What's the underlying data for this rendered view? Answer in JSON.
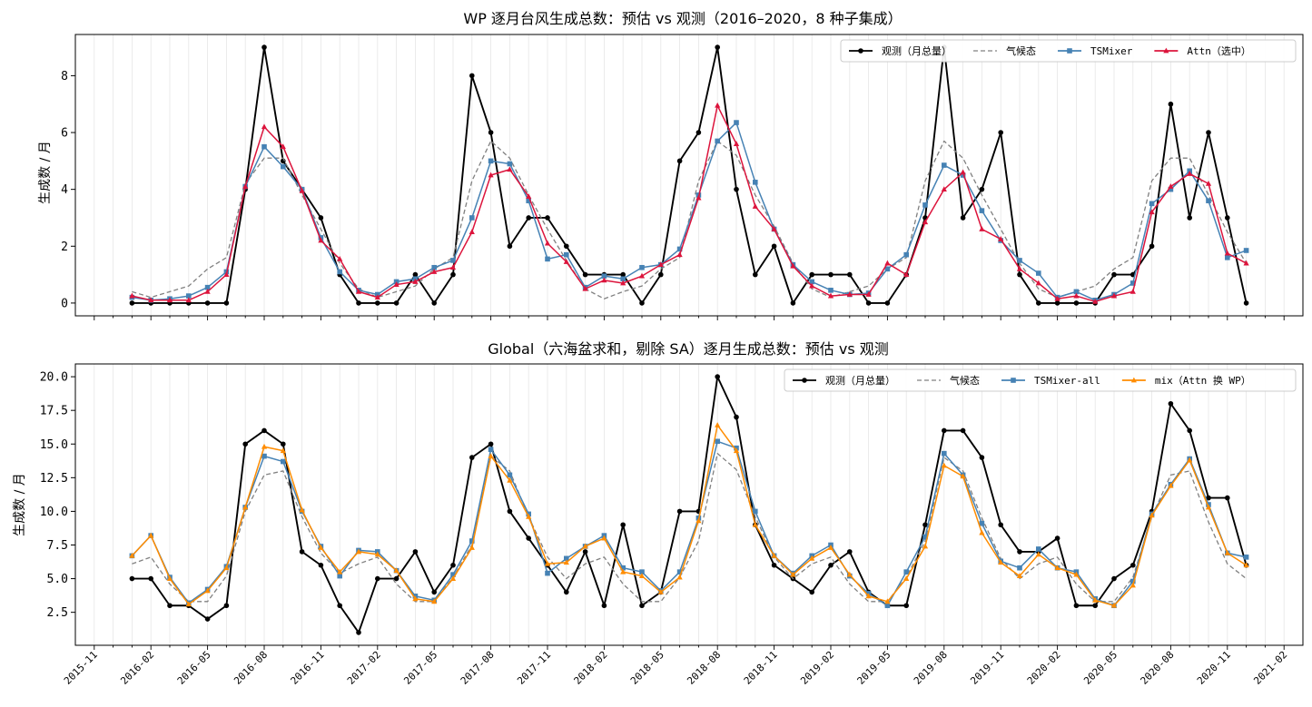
{
  "chart_data": [
    {
      "type": "line",
      "title": "WP 逐月台风生成总数：预估 vs 观测（2016–2020，8 种子集成）",
      "ylabel": "生成数 / 月",
      "xlim": [
        "2015-10",
        "2021-03"
      ],
      "ylim": [
        -0.45,
        9.45
      ],
      "yticks": [
        "0",
        "2",
        "4",
        "6",
        "8"
      ],
      "legend_position": "top-right",
      "x_start": "2016-01",
      "series": [
        {
          "name": "观测（月总量）",
          "color": "#000000",
          "style": "solid-circle",
          "values": [
            0,
            0,
            0,
            0,
            0,
            0,
            4,
            9,
            5,
            4,
            3,
            1,
            0,
            0,
            0,
            1,
            0,
            1,
            8,
            6,
            2,
            3,
            3,
            2,
            1,
            1,
            1,
            0,
            1,
            5,
            6,
            9,
            4,
            1,
            2,
            0,
            1,
            1,
            1,
            0,
            0,
            1,
            3,
            9,
            3,
            4,
            6,
            1,
            0,
            0,
            0,
            0,
            1,
            1,
            2,
            7,
            3,
            6,
            3,
            0
          ]
        },
        {
          "name": "气候态",
          "color": "#808080",
          "style": "dashed",
          "values": [
            0.4,
            0.2,
            0.4,
            0.6,
            1.2,
            1.6,
            4.2,
            5.1,
            5.1,
            3.8,
            2.6,
            1.4,
            0.5,
            0.2,
            0.4,
            0.6,
            1.2,
            1.6,
            4.3,
            5.7,
            5.1,
            3.8,
            2.6,
            1.5,
            0.5,
            0.15,
            0.4,
            0.6,
            1.2,
            1.6,
            4.3,
            5.7,
            5.2,
            3.8,
            2.7,
            1.4,
            0.5,
            0.2,
            0.4,
            0.6,
            1.2,
            1.6,
            4.3,
            5.7,
            5.1,
            3.8,
            2.6,
            1.4,
            0.5,
            0.2,
            0.4,
            0.6,
            1.2,
            1.6,
            4.3,
            5.1,
            5.1,
            3.8,
            2.5,
            1.4
          ]
        },
        {
          "name": "TSMixer",
          "color": "#4682b4",
          "style": "solid-square",
          "values": [
            0.2,
            0.1,
            0.15,
            0.25,
            0.55,
            1.1,
            4.1,
            5.5,
            4.8,
            4.0,
            2.3,
            1.1,
            0.45,
            0.3,
            0.75,
            0.85,
            1.25,
            1.5,
            3.0,
            5.0,
            4.9,
            3.6,
            1.55,
            1.7,
            0.55,
            0.95,
            0.85,
            1.25,
            1.35,
            1.9,
            3.8,
            5.7,
            6.35,
            4.25,
            2.6,
            1.35,
            0.75,
            0.45,
            0.3,
            0.35,
            1.2,
            1.7,
            3.45,
            4.85,
            4.5,
            3.25,
            2.2,
            1.5,
            1.05,
            0.2,
            0.4,
            0.1,
            0.3,
            0.7,
            3.5,
            4.0,
            4.65,
            3.6,
            1.6,
            1.85
          ]
        },
        {
          "name": "Attn（选中）",
          "color": "#dc143c",
          "style": "solid-triangle",
          "values": [
            0.25,
            0.1,
            0.1,
            0.1,
            0.4,
            1.0,
            4.1,
            6.2,
            5.5,
            3.95,
            2.2,
            1.55,
            0.4,
            0.2,
            0.65,
            0.75,
            1.1,
            1.25,
            2.5,
            4.5,
            4.7,
            3.75,
            2.1,
            1.45,
            0.5,
            0.8,
            0.7,
            0.95,
            1.35,
            1.7,
            3.7,
            6.95,
            5.6,
            3.4,
            2.6,
            1.3,
            0.6,
            0.25,
            0.3,
            0.3,
            1.4,
            1.0,
            2.85,
            4.0,
            4.6,
            2.6,
            2.25,
            1.2,
            0.7,
            0.15,
            0.25,
            0.05,
            0.25,
            0.4,
            3.2,
            4.1,
            4.55,
            4.2,
            1.75,
            1.4
          ]
        }
      ]
    },
    {
      "type": "line",
      "title": "Global（六海盆求和，剔除 SA）逐月生成总数：预估 vs 观测",
      "ylabel": "生成数 / 月",
      "xlim": [
        "2015-10",
        "2021-03"
      ],
      "ylim": [
        0.05,
        20.95
      ],
      "yticks": [
        "2.5",
        "5.0",
        "7.5",
        "10.0",
        "12.5",
        "15.0",
        "17.5",
        "20.0"
      ],
      "legend_position": "top-right",
      "x_start": "2016-01",
      "xticks": [
        "2015-11",
        "2016-02",
        "2016-05",
        "2016-08",
        "2016-11",
        "2017-02",
        "2017-05",
        "2017-08",
        "2017-11",
        "2018-02",
        "2018-05",
        "2018-08",
        "2018-11",
        "2019-02",
        "2019-05",
        "2019-08",
        "2019-11",
        "2020-02",
        "2020-05",
        "2020-08",
        "2020-11",
        "2021-02"
      ],
      "series": [
        {
          "name": "观测（月总量）",
          "color": "#000000",
          "style": "solid-circle",
          "values": [
            5,
            5,
            3,
            3,
            2,
            3,
            15,
            16,
            15,
            7,
            6,
            3,
            1,
            5,
            5,
            7,
            4,
            6,
            14,
            15,
            10,
            8,
            6,
            4,
            7,
            3,
            9,
            3,
            4,
            10,
            10,
            20,
            17,
            9,
            6,
            5,
            4,
            6,
            7,
            4,
            3,
            3,
            9,
            16,
            16,
            14,
            9,
            7,
            7,
            8,
            3,
            3,
            5,
            6,
            10,
            18,
            16,
            11,
            11,
            6
          ]
        },
        {
          "name": "气候态",
          "color": "#808080",
          "style": "dashed",
          "values": [
            6.1,
            6.6,
            4.6,
            3.3,
            3.3,
            5.2,
            10.0,
            12.7,
            13.0,
            9.6,
            6.9,
            5.4,
            6.1,
            6.6,
            4.6,
            3.3,
            3.3,
            5.1,
            7.5,
            14.1,
            13.0,
            9.6,
            6.6,
            5.0,
            6.1,
            6.6,
            4.6,
            3.3,
            3.3,
            5.1,
            7.8,
            14.3,
            13.1,
            9.6,
            6.6,
            5.0,
            6.1,
            6.6,
            4.6,
            3.3,
            3.3,
            5.1,
            7.8,
            14.0,
            13.0,
            9.5,
            6.5,
            5.0,
            6.1,
            6.6,
            4.6,
            3.3,
            3.3,
            5.1,
            9.6,
            12.7,
            13.0,
            9.2,
            6.1,
            5.0
          ]
        },
        {
          "name": "TSMixer-all",
          "color": "#4682b4",
          "style": "solid-square",
          "values": [
            6.7,
            8.2,
            5.1,
            3.2,
            4.2,
            5.9,
            10.3,
            14.1,
            13.7,
            10.0,
            7.4,
            5.2,
            7.1,
            7.0,
            5.6,
            3.7,
            3.4,
            5.3,
            7.8,
            14.6,
            12.7,
            9.8,
            5.4,
            6.5,
            7.4,
            8.2,
            5.8,
            5.5,
            4.1,
            5.5,
            9.5,
            15.2,
            14.7,
            10.0,
            6.7,
            5.4,
            6.7,
            7.5,
            5.2,
            3.9,
            3.0,
            5.5,
            8.1,
            14.3,
            12.7,
            9.1,
            6.3,
            5.8,
            7.2,
            5.8,
            5.5,
            3.5,
            3.0,
            4.8,
            9.8,
            12.0,
            13.9,
            10.5,
            6.9,
            6.6
          ]
        },
        {
          "name": "mix（Attn 换 WP）",
          "color": "#ff8c00",
          "style": "solid-triangle",
          "values": [
            6.7,
            8.2,
            5.0,
            3.1,
            4.1,
            5.8,
            10.3,
            14.8,
            14.5,
            10.1,
            7.3,
            5.5,
            7.0,
            6.8,
            5.6,
            3.5,
            3.3,
            5.0,
            7.3,
            14.1,
            12.3,
            9.6,
            6.1,
            6.2,
            7.4,
            8.0,
            5.5,
            5.2,
            4.0,
            5.1,
            9.3,
            16.4,
            14.5,
            9.0,
            6.7,
            5.3,
            6.5,
            7.3,
            5.3,
            3.7,
            3.3,
            5.0,
            7.4,
            13.4,
            12.6,
            8.4,
            6.2,
            5.2,
            6.8,
            5.8,
            5.3,
            3.4,
            3.0,
            4.5,
            9.7,
            11.9,
            13.8,
            10.3,
            6.9,
            6.0
          ]
        }
      ]
    }
  ]
}
